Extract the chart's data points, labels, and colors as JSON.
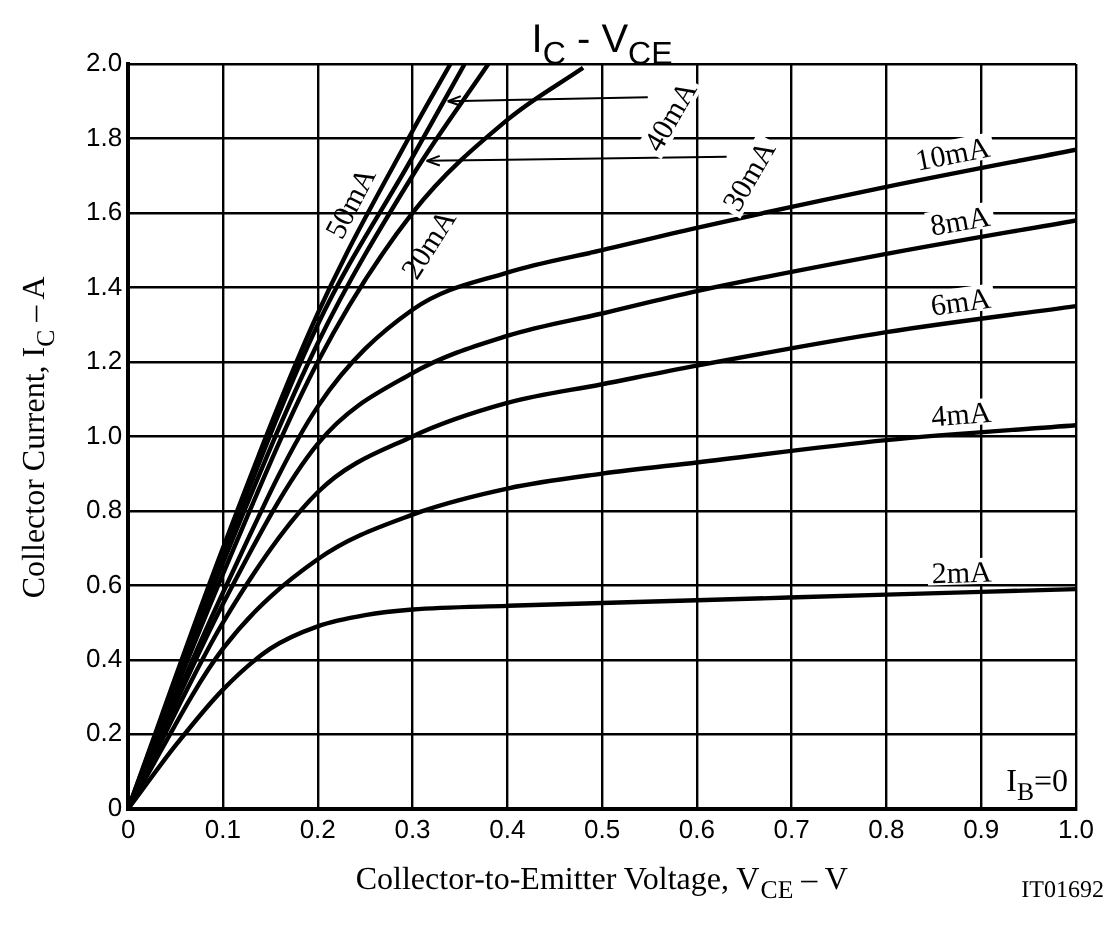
{
  "chart_data": {
    "type": "line",
    "title": "I$_{C}$ - V$_{CE}$",
    "xlabel": "Collector-to-Emitter Voltage, V$_{CE}$ – V",
    "ylabel": "Collector Current, I$_{C}$ – A",
    "xlim": [
      0,
      1.0
    ],
    "xticks": [
      0,
      0.1,
      0.2,
      0.3,
      0.4,
      0.5,
      0.6,
      0.7,
      0.8,
      0.9,
      {
        "value": 1.0,
        "label": "1.0"
      }
    ],
    "ylim": [
      0,
      2.0
    ],
    "yticks": [
      0,
      0.2,
      0.4,
      0.6,
      0.8,
      {
        "value": 1.0,
        "label": "1.0"
      },
      1.2,
      1.4,
      1.6,
      1.8,
      {
        "value": 2.0,
        "label": "2.0"
      }
    ],
    "grid": true,
    "legend": false,
    "marker": "none",
    "line_style": "solid",
    "series": [
      {
        "name": "2mA",
        "color": "#000000",
        "x": [
          0,
          0.05,
          0.1,
          0.15,
          0.2,
          0.25,
          0.3,
          0.4,
          0.6,
          0.8,
          1.0
        ],
        "values": [
          0,
          0.17,
          0.32,
          0.43,
          0.49,
          0.52,
          0.535,
          0.545,
          0.56,
          0.575,
          0.59
        ]
      },
      {
        "name": "4mA",
        "color": "#000000",
        "x": [
          0,
          0.1,
          0.2,
          0.3,
          0.4,
          0.5,
          0.6,
          0.8,
          1.0
        ],
        "values": [
          0,
          0.43,
          0.67,
          0.79,
          0.86,
          0.9,
          0.93,
          0.99,
          1.03
        ]
      },
      {
        "name": "6mA",
        "color": "#000000",
        "x": [
          0,
          0.1,
          0.2,
          0.3,
          0.4,
          0.5,
          0.6,
          0.8,
          1.0
        ],
        "values": [
          0,
          0.5,
          0.85,
          1.0,
          1.09,
          1.14,
          1.19,
          1.28,
          1.35
        ]
      },
      {
        "name": "8mA",
        "color": "#000000",
        "x": [
          0,
          0.1,
          0.2,
          0.3,
          0.4,
          0.5,
          0.6,
          0.8,
          1.0
        ],
        "values": [
          0,
          0.55,
          0.98,
          1.17,
          1.27,
          1.33,
          1.39,
          1.49,
          1.58
        ]
      },
      {
        "name": "10mA",
        "color": "#000000",
        "x": [
          0,
          0.1,
          0.2,
          0.3,
          0.4,
          0.5,
          0.6,
          0.8,
          1.0
        ],
        "values": [
          0,
          0.58,
          1.08,
          1.34,
          1.44,
          1.5,
          1.56,
          1.67,
          1.77
        ]
      },
      {
        "name": "20mA",
        "color": "#000000",
        "x": [
          0,
          0.1,
          0.2,
          0.3,
          0.4,
          0.48
        ],
        "values": [
          0,
          0.63,
          1.2,
          1.6,
          1.85,
          1.99
        ]
      },
      {
        "name": "30mA",
        "color": "#000000",
        "x": [
          0,
          0.1,
          0.2,
          0.3,
          0.38
        ],
        "values": [
          0,
          0.66,
          1.25,
          1.7,
          2.0
        ]
      },
      {
        "name": "40mA",
        "color": "#000000",
        "x": [
          0,
          0.1,
          0.2,
          0.3,
          0.355
        ],
        "values": [
          0,
          0.68,
          1.3,
          1.75,
          2.0
        ]
      },
      {
        "name": "50mA",
        "color": "#000000",
        "x": [
          0,
          0.1,
          0.2,
          0.3,
          0.34
        ],
        "values": [
          0,
          0.7,
          1.33,
          1.82,
          2.0
        ]
      }
    ],
    "annotations": [
      "I$_{B}$=0",
      "IT01692"
    ]
  }
}
